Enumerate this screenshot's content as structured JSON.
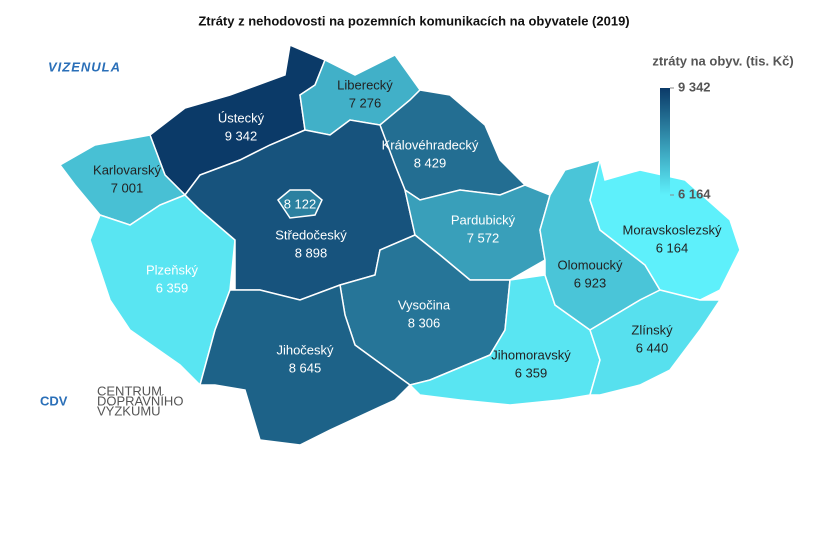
{
  "chart_data": {
    "type": "choropleth",
    "title": "Ztráty z nehodovosti na pozemních komunikacích na obyvatele (2019)",
    "legend_title": "ztráty na obyv. (tis. Kč)",
    "legend_ticks": [
      {
        "value": 9342,
        "label": "9 342"
      },
      {
        "value": 6164,
        "label": "6 164"
      }
    ],
    "color_max": "#0b3a68",
    "color_min": "#5ef0fb",
    "categories": [
      "Ústecký",
      "Liberecký",
      "Královéhradecký",
      "Karlovarský",
      "Plzeňský",
      "Středočeský",
      null,
      "Pardubický",
      "Vysočina",
      "Jihočeský",
      "Jihomoravský",
      "Olomoucký",
      "Moravskoslezský",
      "Zlínský"
    ],
    "values": [
      9342,
      7276,
      8429,
      7001,
      6359,
      8898,
      8122,
      7572,
      8306,
      8645,
      6359,
      6923,
      6164,
      6440
    ],
    "value_labels": [
      "9 342",
      "7 276",
      "8 429",
      "7 001",
      "6 359",
      "8 898",
      "8 122",
      "7 572",
      "8 306",
      "8 645",
      "6 359",
      "6 923",
      "6 164",
      "6 440"
    ]
  },
  "logos": {
    "vizenula": "VIZENULA",
    "cdv": "CDV",
    "cdv_lines": [
      "CENTRUM",
      "DOPRAVNÍHO",
      "VÝZKUMU"
    ]
  }
}
